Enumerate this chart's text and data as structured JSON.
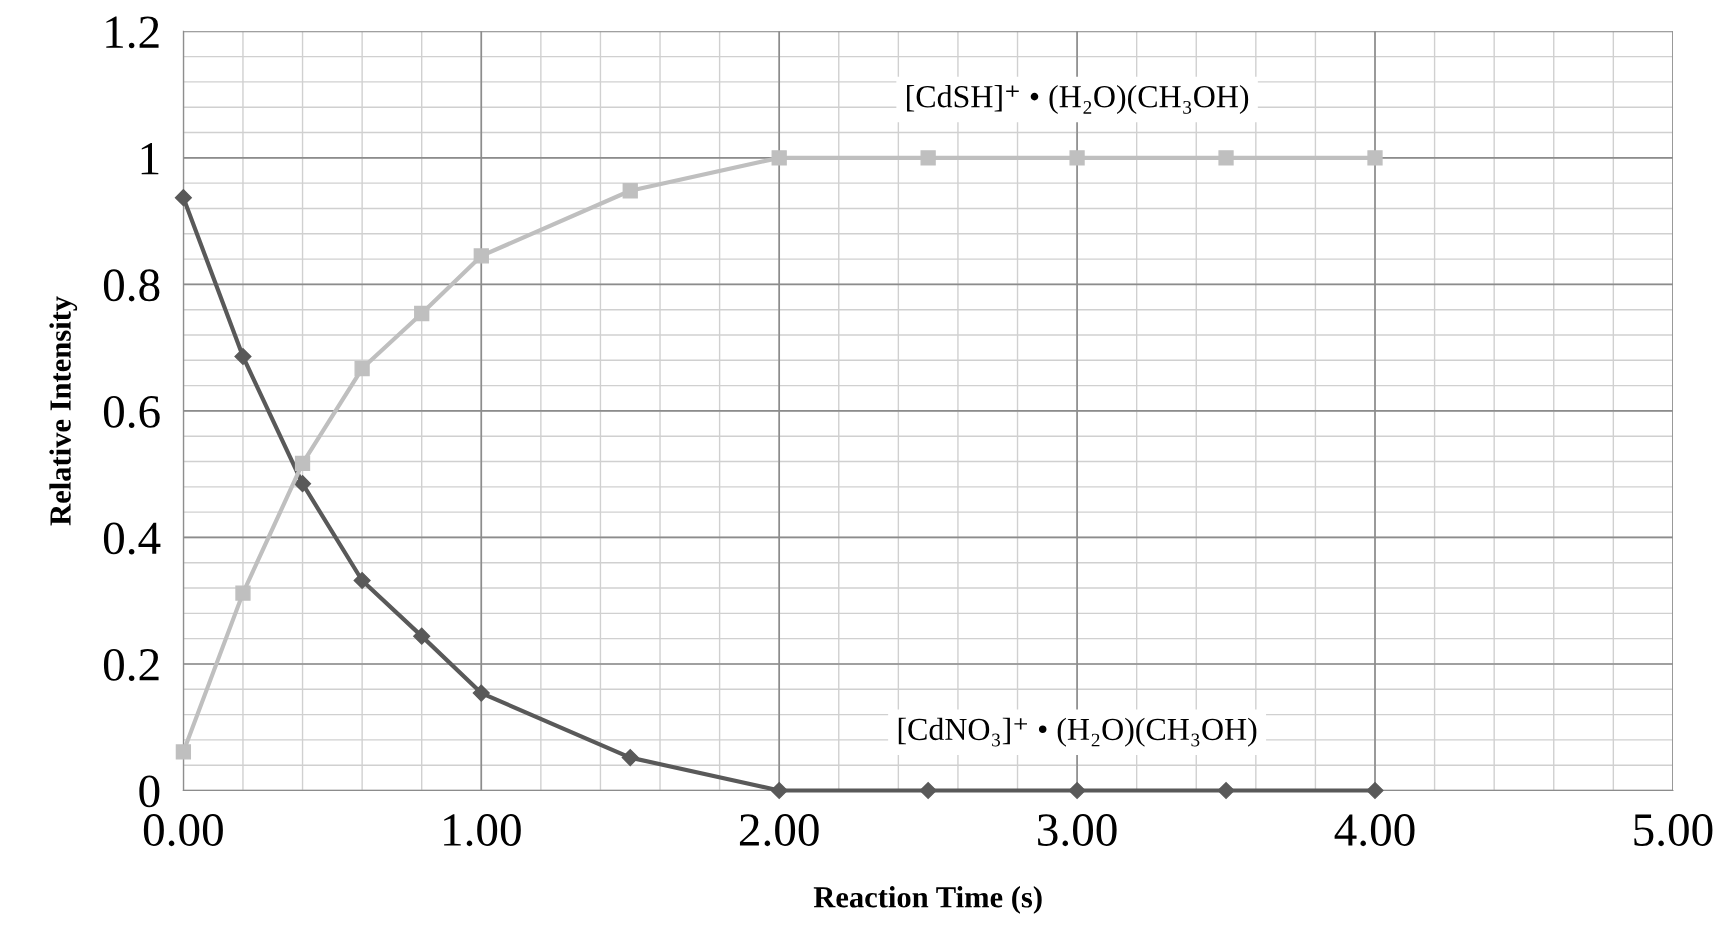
{
  "chart_data": {
    "type": "line",
    "xlabel": "Reaction Time (s)",
    "ylabel": "Relative Intensity",
    "x": [
      0,
      0.2,
      0.4,
      0.6,
      0.8,
      1.0,
      1.5,
      2,
      2.5,
      3,
      3.5,
      4
    ],
    "series": [
      {
        "name": "[CdNO₃]⁺ • (H₂O)(CH₃OH)",
        "color": "#595959",
        "marker": "diamond",
        "values": [
          0.937,
          0.686,
          0.485,
          0.332,
          0.244,
          0.154,
          0.052,
          0,
          0,
          0,
          0,
          0
        ]
      },
      {
        "name": "[CdSH]⁺ • (H₂O)(CH₃OH)",
        "color": "#bfbfbf",
        "marker": "square",
        "values": [
          0.061,
          0.312,
          0.517,
          0.667,
          0.754,
          0.845,
          0.948,
          1,
          1,
          1,
          1,
          1
        ]
      }
    ],
    "xlim": [
      0,
      5
    ],
    "xticks": [
      {
        "value": 0,
        "label": "0.00"
      },
      {
        "value": 1,
        "label": "1.00"
      },
      {
        "value": 2,
        "label": "2.00"
      },
      {
        "value": 3,
        "label": "3.00"
      },
      {
        "value": 4,
        "label": "4.00"
      },
      {
        "value": 5,
        "label": "5.00"
      }
    ],
    "ylim": [
      0,
      1.2
    ],
    "yticks": [
      0,
      0.2,
      0.4,
      0.6,
      0.8,
      1,
      1.2
    ],
    "grid": true,
    "legend": false,
    "line_style": "solid"
  }
}
